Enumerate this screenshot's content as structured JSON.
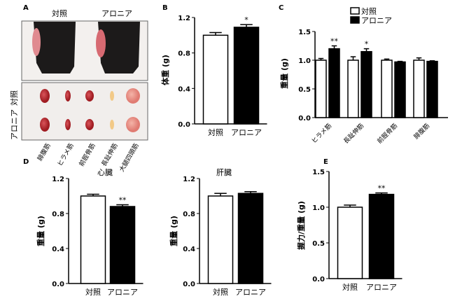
{
  "panel_a": {
    "label": "A",
    "group_labels": [
      "対照",
      "アロニア"
    ],
    "row_labels": [
      "対照",
      "アロニア"
    ],
    "muscle_labels": [
      "腓腹筋",
      "ヒラメ筋",
      "前脛骨筋",
      "長趾伸筋",
      "大腿四頭筋"
    ]
  },
  "chart_data": [
    {
      "id": "B",
      "panel_label": "B",
      "type": "bar",
      "title": "",
      "ylabel": "体重 (g)",
      "categories": [
        "対照",
        "アロニア"
      ],
      "values": [
        1.0,
        1.09
      ],
      "errors": [
        0.03,
        0.03
      ],
      "sig": [
        "",
        "*"
      ],
      "ylim": [
        0,
        1.2
      ],
      "yticks": [
        "0.0",
        "0.4",
        "0.8",
        "1.2"
      ]
    },
    {
      "id": "C",
      "panel_label": "C",
      "type": "bar",
      "title": "",
      "ylabel": "重量 (g)",
      "categories": [
        "ヒラメ筋",
        "長趾伸筋",
        "前脛骨筋",
        "腓腹筋"
      ],
      "series": [
        {
          "name": "対照",
          "values": [
            1.0,
            1.0,
            1.0,
            1.0
          ],
          "errors": [
            0.03,
            0.06,
            0.02,
            0.04
          ]
        },
        {
          "name": "アロニア",
          "values": [
            1.2,
            1.15,
            0.97,
            0.98
          ],
          "errors": [
            0.05,
            0.05,
            0.01,
            0.01
          ]
        }
      ],
      "sig": [
        "**",
        "*",
        "",
        ""
      ],
      "ylim": [
        0,
        1.5
      ],
      "yticks": [
        "0.0",
        "0.5",
        "1.0",
        "1.5"
      ],
      "legend": "top-right"
    },
    {
      "id": "D1",
      "panel_label": "D",
      "type": "bar",
      "title": "心臓",
      "ylabel": "重量 (g)",
      "categories": [
        "対照",
        "アロニア"
      ],
      "values": [
        1.0,
        0.88
      ],
      "errors": [
        0.02,
        0.02
      ],
      "sig": [
        "",
        "**"
      ],
      "ylim": [
        0,
        1.2
      ],
      "yticks": [
        "0.0",
        "0.4",
        "0.8",
        "1.2"
      ]
    },
    {
      "id": "D2",
      "panel_label": "",
      "type": "bar",
      "title": "肝臓",
      "ylabel": "重量 (g)",
      "categories": [
        "対照",
        "アロニア"
      ],
      "values": [
        1.0,
        1.03
      ],
      "errors": [
        0.03,
        0.02
      ],
      "sig": [
        "",
        ""
      ],
      "ylim": [
        0,
        1.2
      ],
      "yticks": [
        "0.0",
        "0.4",
        "0.8",
        "1.2"
      ]
    },
    {
      "id": "E",
      "panel_label": "E",
      "type": "bar",
      "title": "",
      "ylabel": "握力/重量 (g)",
      "categories": [
        "対照",
        "アロニア"
      ],
      "values": [
        1.0,
        1.18
      ],
      "errors": [
        0.03,
        0.02
      ],
      "sig": [
        "",
        "**"
      ],
      "ylim": [
        0,
        1.5
      ],
      "yticks": [
        "0.0",
        "0.5",
        "1.0",
        "1.5"
      ]
    }
  ]
}
